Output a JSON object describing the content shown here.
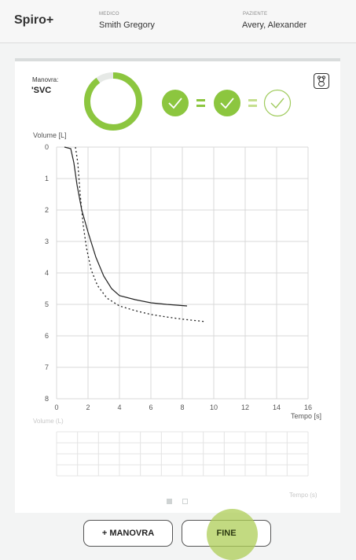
{
  "header": {
    "app_title": "Spiro+",
    "medico_label": "MEDICO",
    "medico_value": "Smith Gregory",
    "paziente_label": "PAZIENTE",
    "paziente_value": "Avery, Alexander"
  },
  "maneuver": {
    "label": "Manovra:",
    "value": "'SVC"
  },
  "status": {
    "progress_fraction": 0.9,
    "checks": [
      {
        "state": "passed"
      },
      {
        "state": "passed"
      },
      {
        "state": "pending"
      }
    ],
    "operators": [
      "=",
      "="
    ]
  },
  "icons": {
    "kid_mode": "teddy-bear-icon",
    "check": "check-icon"
  },
  "colors": {
    "accent_green": "#8cc63f",
    "accent_green_light": "#c5df8e",
    "ripple": "#adce57"
  },
  "chart_data": {
    "type": "line",
    "ylabel": "Volume [L]",
    "xlabel": "Tempo [s]",
    "xlim": [
      0,
      16
    ],
    "ylim": [
      0,
      8
    ],
    "y_inverted": true,
    "grid": true,
    "x_ticks": [
      "0",
      "2",
      "4",
      "6",
      "8",
      "10",
      "12",
      "14",
      "16"
    ],
    "y_ticks": [
      "0",
      "1",
      "2",
      "3",
      "4",
      "5",
      "6",
      "7",
      "8"
    ],
    "series": [
      {
        "style": "solid",
        "points": [
          [
            0.5,
            0
          ],
          [
            0.9,
            0.05
          ],
          [
            1.1,
            0.5
          ],
          [
            1.3,
            1.2
          ],
          [
            1.6,
            2.0
          ],
          [
            2.0,
            2.7
          ],
          [
            2.5,
            3.5
          ],
          [
            3.0,
            4.1
          ],
          [
            3.5,
            4.5
          ],
          [
            4.0,
            4.72
          ],
          [
            5.0,
            4.85
          ],
          [
            6.0,
            4.95
          ],
          [
            7.0,
            5.0
          ],
          [
            8.3,
            5.05
          ]
        ]
      },
      {
        "style": "dotted",
        "points": [
          [
            1.2,
            0
          ],
          [
            1.35,
            0.5
          ],
          [
            1.5,
            1.5
          ],
          [
            1.7,
            2.5
          ],
          [
            1.9,
            3.2
          ],
          [
            2.2,
            3.9
          ],
          [
            2.6,
            4.4
          ],
          [
            3.2,
            4.8
          ],
          [
            4.0,
            5.05
          ],
          [
            5.0,
            5.2
          ],
          [
            6.0,
            5.32
          ],
          [
            7.0,
            5.4
          ],
          [
            8.0,
            5.47
          ],
          [
            9.5,
            5.55
          ]
        ]
      }
    ]
  },
  "mini_chart": {
    "ylabel": "Volume (L)",
    "xlabel": "Tempo (s)"
  },
  "pager": {
    "page_count": 2,
    "active_index": 0
  },
  "buttons": {
    "add_maneuver": "+ MANOVRA",
    "finish": "FINE"
  }
}
